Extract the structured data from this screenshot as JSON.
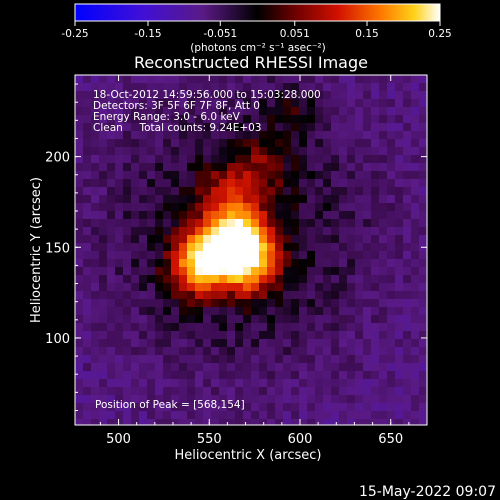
{
  "colorbar": {
    "ticks": [
      "-0.25",
      "-0.15",
      "-0.051",
      "0.051",
      "0.15",
      "0.25"
    ],
    "tick_values": [
      -0.25,
      -0.15,
      -0.051,
      0.051,
      0.15,
      0.25
    ],
    "units": "(photons cm⁻² s⁻¹ asec⁻²)",
    "range": [
      -0.25,
      0.25
    ]
  },
  "chart_data": {
    "type": "heatmap",
    "title": "Reconstructed RHESSI Image",
    "xlabel": "Heliocentric X (arcsec)",
    "ylabel": "Heliocentric Y (arcsec)",
    "xlim": [
      476,
      670
    ],
    "ylim": [
      52,
      245
    ],
    "xticks": [
      "500",
      "550",
      "600",
      "650"
    ],
    "xtick_values": [
      500,
      550,
      600,
      650
    ],
    "yticks": [
      "100",
      "150",
      "200"
    ],
    "ytick_values": [
      100,
      150,
      200
    ],
    "colormap": "red-temperature (blue-purple negative, black zero, red-orange-yellow-white positive)",
    "peak_position": [
      568,
      154
    ],
    "source_regions": [
      {
        "x": 568,
        "y": 154,
        "peak": 0.25
      },
      {
        "x": 552,
        "y": 148,
        "peak": 0.19
      },
      {
        "x": 542,
        "y": 138,
        "peak": 0.13
      },
      {
        "x": 572,
        "y": 138,
        "peak": 0.13
      },
      {
        "x": 560,
        "y": 178,
        "peak": 0.09
      },
      {
        "x": 578,
        "y": 195,
        "peak": 0.06
      },
      {
        "x": 596,
        "y": 226,
        "peak": 0.05
      }
    ],
    "annotations": [
      "18-Oct-2012 14:59:56.000 to 15:03:28.000",
      "Detectors: 3F 5F 6F 7F 8F, Att 0",
      "Energy Range: 3.0 - 6.0 keV",
      "Clean     Total counts: 9.24E+03",
      "Position of Peak = [568,154]"
    ]
  },
  "footer": {
    "timestamp": "15-May-2022 09:07"
  }
}
